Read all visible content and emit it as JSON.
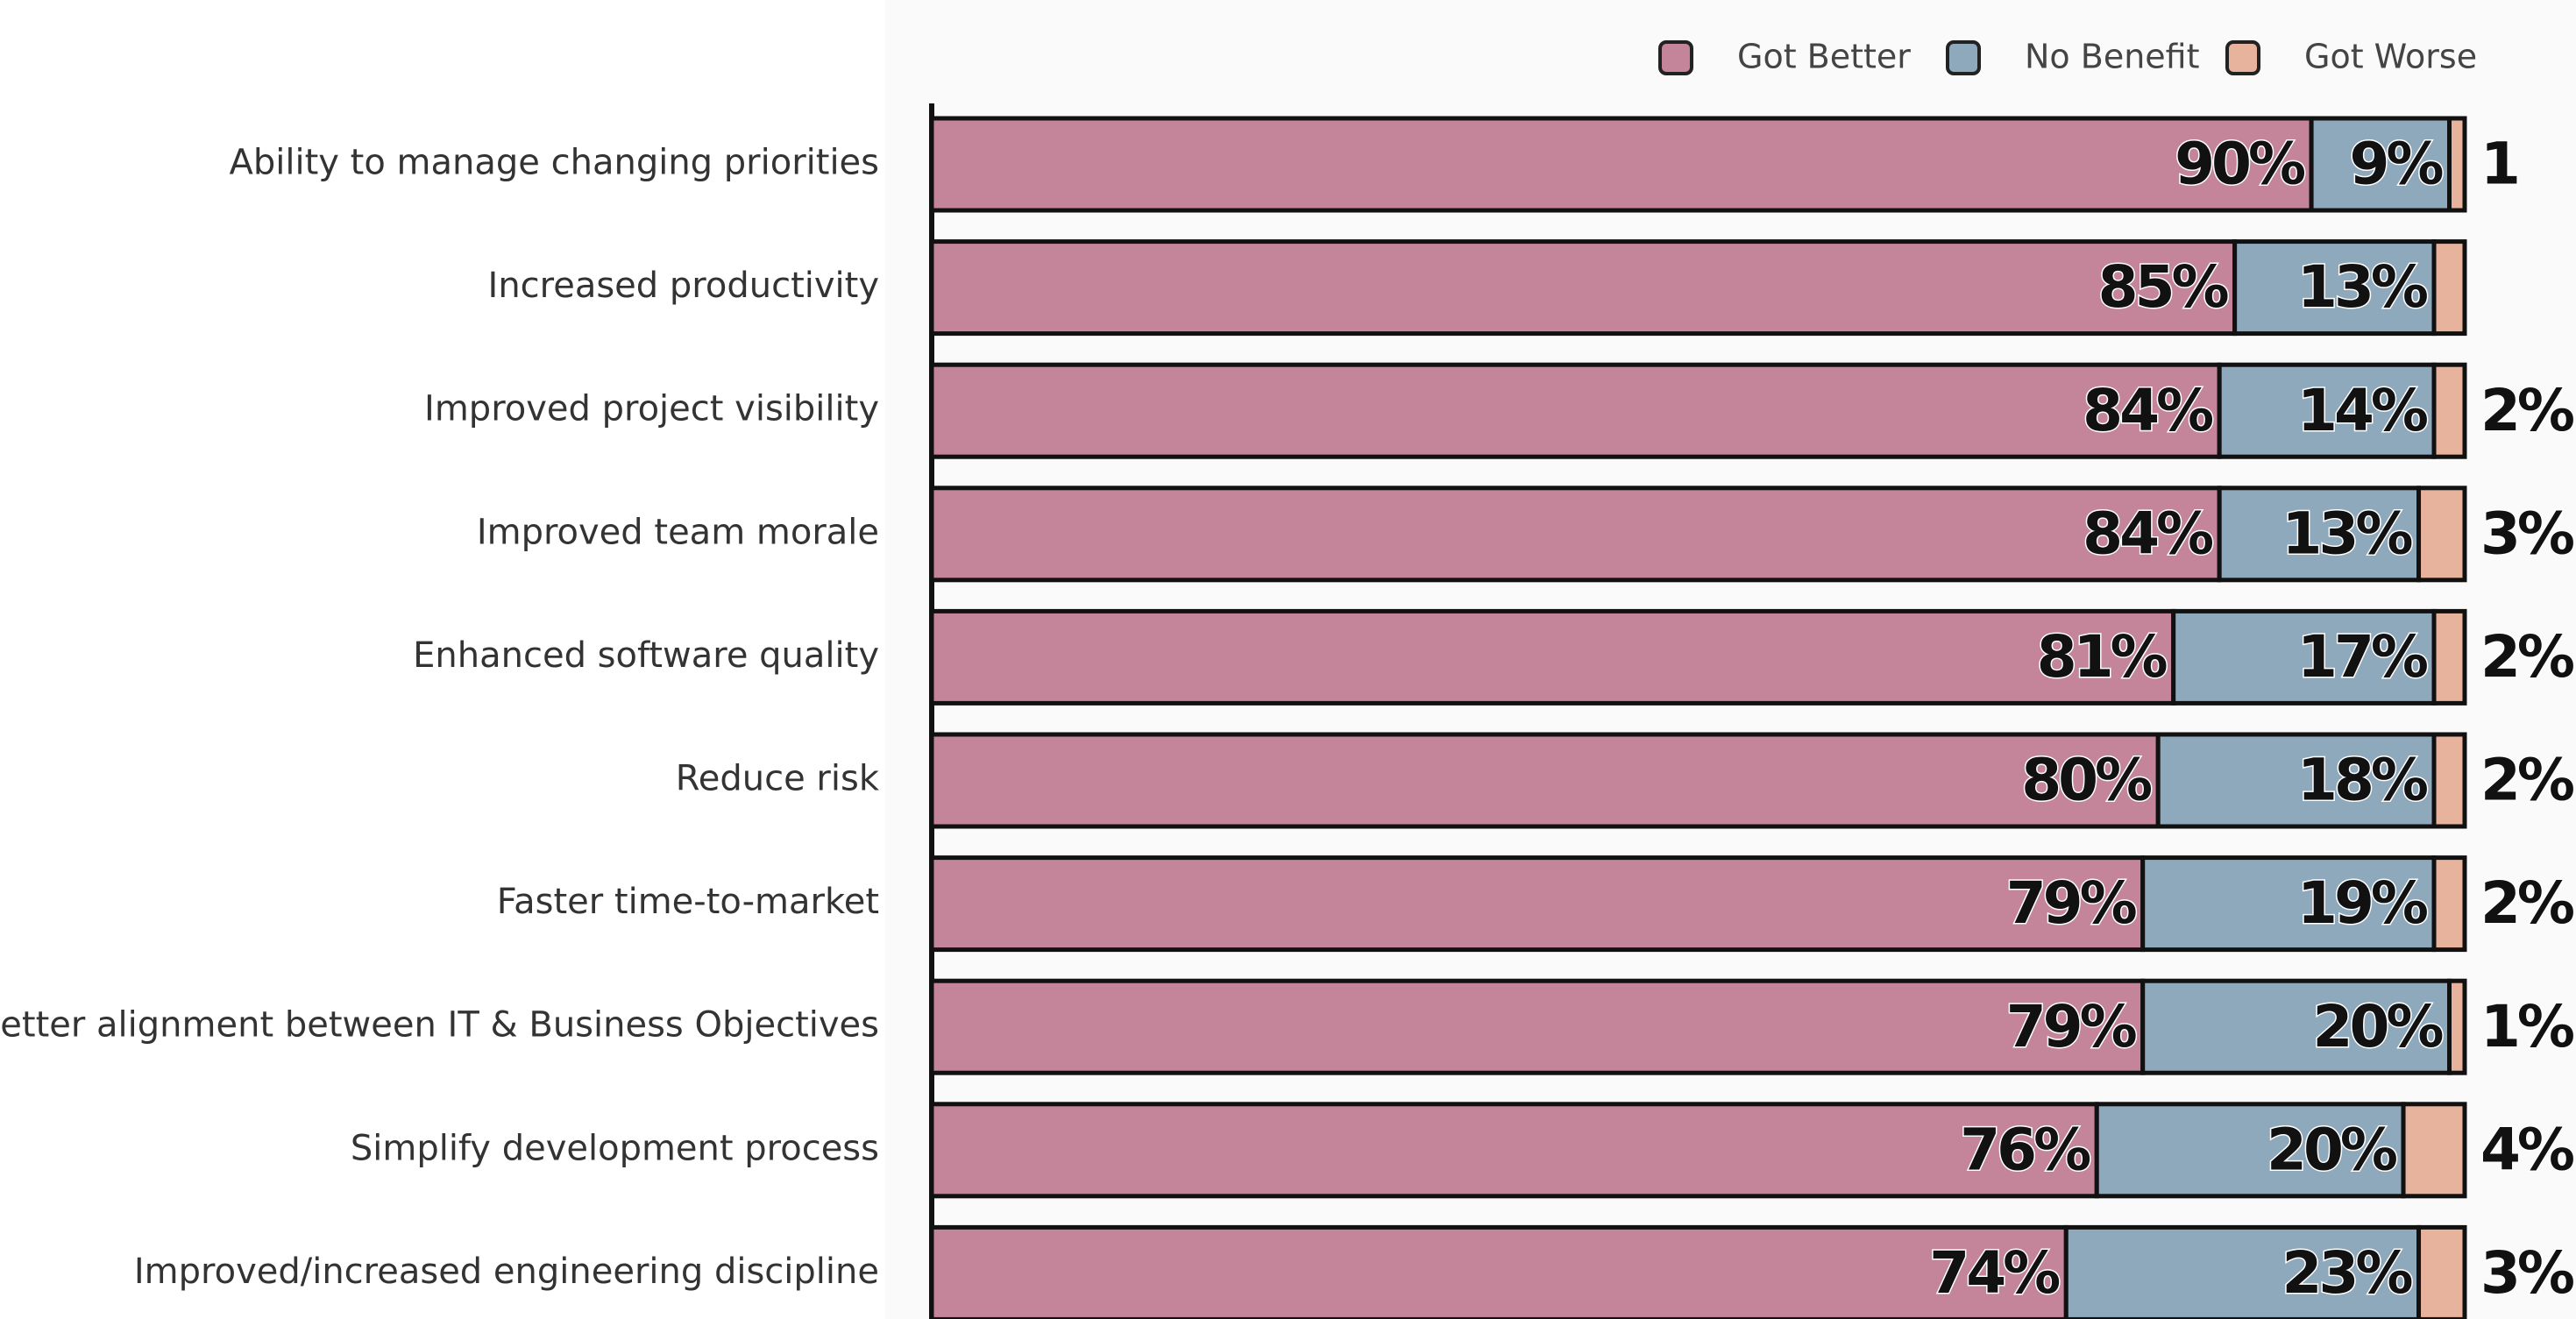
{
  "chart_data": {
    "type": "stacked-bar-horizontal",
    "categories": [
      "Ability to manage changing priorities",
      "Increased productivity",
      "Improved project visibility",
      "Improved team morale",
      "Enhanced software quality",
      "Reduce risk",
      "Faster time-to-market",
      "Better alignment between IT & Business Objectives",
      "Simplify development process",
      "Improved/increased engineering discipline"
    ],
    "xlim": [
      0,
      100
    ],
    "series": [
      {
        "name": "Got Better",
        "color": "#c4849a",
        "values": [
          90,
          85,
          84,
          84,
          81,
          80,
          79,
          79,
          76,
          74
        ],
        "value_labels": [
          "90%",
          "85%",
          "84%",
          "84%",
          "81%",
          "80%",
          "79%",
          "79%",
          "76%",
          "74%"
        ]
      },
      {
        "name": "No Benefit",
        "color": "#8fa9bc",
        "values": [
          9,
          13,
          14,
          13,
          17,
          18,
          19,
          20,
          20,
          23
        ],
        "value_labels": [
          "9%",
          "13%",
          "14%",
          "13%",
          "17%",
          "18%",
          "19%",
          "20%",
          "20%",
          "23%"
        ]
      },
      {
        "name": "Got Worse",
        "color": "#e8b39c",
        "values": [
          1,
          2,
          2,
          3,
          2,
          2,
          2,
          1,
          4,
          3
        ],
        "value_labels": [
          "1",
          null,
          "2%",
          "3%",
          "2%",
          "2%",
          "2%",
          "1%",
          "4%",
          "3%"
        ]
      }
    ]
  }
}
